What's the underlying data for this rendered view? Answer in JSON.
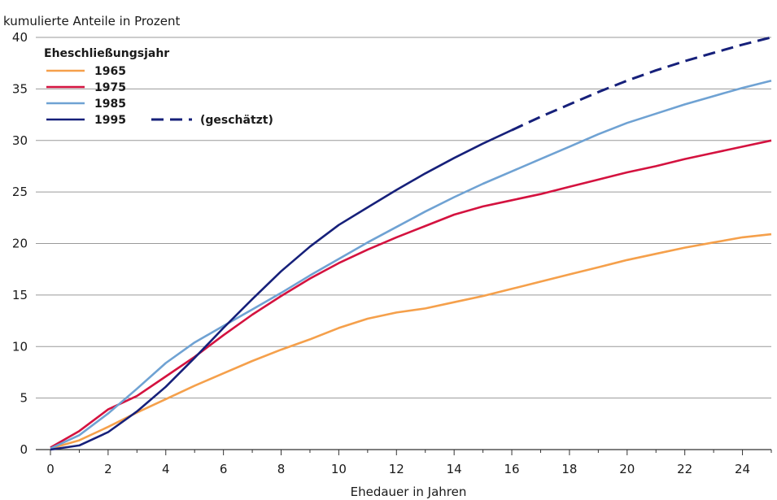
{
  "chart_data": {
    "type": "line",
    "title": "",
    "ylabel": "kumulierte Anteile in Prozent",
    "xlabel": "Ehedauer in Jahren",
    "xlim": [
      0,
      25
    ],
    "ylim": [
      0,
      40
    ],
    "x_ticks": [
      0,
      2,
      4,
      6,
      8,
      10,
      12,
      14,
      16,
      18,
      20,
      22,
      24
    ],
    "y_ticks": [
      0,
      5,
      10,
      15,
      20,
      25,
      30,
      35,
      40
    ],
    "grid": "horizontal",
    "legend_title": "Eheschließungsjahr",
    "legend_position": "top-left",
    "estimated_label": "(geschätzt)",
    "series": [
      {
        "name": "1965",
        "color": "#f5a04b",
        "x": [
          0,
          1,
          2,
          3,
          4,
          5,
          6,
          7,
          8,
          9,
          10,
          11,
          12,
          13,
          14,
          15,
          16,
          17,
          18,
          19,
          20,
          21,
          22,
          23,
          24,
          25
        ],
        "values": [
          0.1,
          0.9,
          2.2,
          3.6,
          4.9,
          6.2,
          7.4,
          8.6,
          9.7,
          10.7,
          11.8,
          12.7,
          13.3,
          13.7,
          14.3,
          14.9,
          15.6,
          16.3,
          17.0,
          17.7,
          18.4,
          19.0,
          19.6,
          20.1,
          20.6,
          20.9
        ]
      },
      {
        "name": "1975",
        "color": "#d4123f",
        "x": [
          0,
          1,
          2,
          3,
          4,
          5,
          6,
          7,
          8,
          9,
          10,
          11,
          12,
          13,
          14,
          15,
          16,
          17,
          18,
          19,
          20,
          21,
          22,
          23,
          24,
          25
        ],
        "values": [
          0.2,
          1.8,
          3.9,
          5.2,
          7.1,
          9.0,
          11.1,
          13.1,
          14.9,
          16.6,
          18.1,
          19.4,
          20.6,
          21.7,
          22.8,
          23.6,
          24.2,
          24.8,
          25.5,
          26.2,
          26.9,
          27.5,
          28.2,
          28.8,
          29.4,
          30.0
        ]
      },
      {
        "name": "1985",
        "color": "#6fa2d3",
        "x": [
          0,
          1,
          2,
          3,
          4,
          5,
          6,
          7,
          8,
          9,
          10,
          11,
          12,
          13,
          14,
          15,
          16,
          17,
          18,
          19,
          20,
          21,
          22,
          23,
          24,
          25
        ],
        "values": [
          0.1,
          1.4,
          3.5,
          5.9,
          8.4,
          10.4,
          12.0,
          13.6,
          15.2,
          16.9,
          18.5,
          20.1,
          21.6,
          23.1,
          24.5,
          25.8,
          27.0,
          28.2,
          29.4,
          30.6,
          31.7,
          32.6,
          33.5,
          34.3,
          35.1,
          35.8
        ]
      },
      {
        "name": "1995",
        "color": "#16207a",
        "x": [
          0,
          1,
          2,
          3,
          4,
          5,
          6,
          7,
          8,
          9,
          10,
          11,
          12,
          13,
          14,
          15,
          16
        ],
        "values": [
          0.0,
          0.4,
          1.7,
          3.7,
          6.1,
          8.9,
          11.8,
          14.6,
          17.3,
          19.7,
          21.8,
          23.5,
          25.2,
          26.8,
          28.3,
          29.7,
          31.0
        ]
      },
      {
        "name": "(geschätzt)",
        "color": "#16207a",
        "dashed": true,
        "x": [
          16,
          17,
          18,
          19,
          20,
          21,
          22,
          23,
          24,
          25
        ],
        "values": [
          31.0,
          32.3,
          33.5,
          34.7,
          35.8,
          36.8,
          37.7,
          38.5,
          39.3,
          40.0
        ]
      }
    ]
  }
}
